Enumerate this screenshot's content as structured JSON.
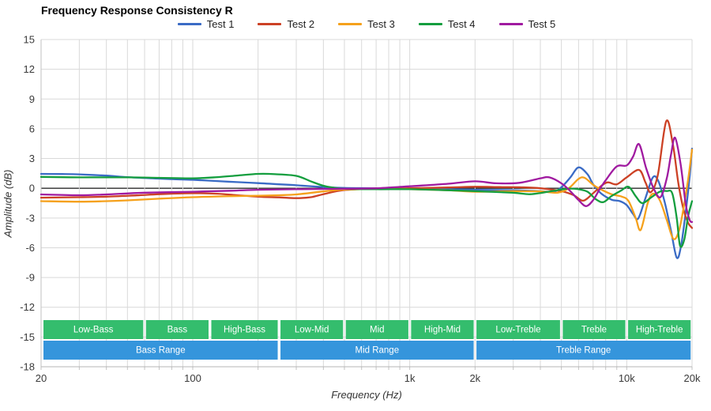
{
  "chart_data": {
    "type": "line",
    "title": "Frequency Response Consistency R",
    "xlabel": "Frequency (Hz)",
    "ylabel": "Amplitude (dB)",
    "x_scale": "log",
    "xlim": [
      20,
      20000
    ],
    "ylim": [
      -18,
      15
    ],
    "grid": true,
    "legend_position": "top",
    "y_ticks": [
      "15",
      "12",
      "9",
      "6",
      "3",
      "0",
      "-3",
      "-6",
      "-9",
      "-12",
      "-15",
      "-18"
    ],
    "y_tick_values": [
      15,
      12,
      9,
      6,
      3,
      0,
      -3,
      -6,
      -9,
      -12,
      -15,
      -18
    ],
    "x_ticks": [
      {
        "value": 20,
        "label": "20"
      },
      {
        "value": 100,
        "label": "100"
      },
      {
        "value": 1000,
        "label": "1k"
      },
      {
        "value": 2000,
        "label": "2k"
      },
      {
        "value": 10000,
        "label": "10k"
      },
      {
        "value": 20000,
        "label": "20k"
      }
    ],
    "x_gridlines": [
      20,
      30,
      40,
      50,
      60,
      70,
      80,
      90,
      100,
      200,
      300,
      400,
      500,
      600,
      700,
      800,
      900,
      1000,
      2000,
      3000,
      4000,
      5000,
      6000,
      7000,
      8000,
      9000,
      10000,
      20000
    ],
    "zero_line_color": "#2b2b2b",
    "grid_color": "#d9d9d9",
    "series": [
      {
        "name": "Test 1",
        "color": "#3a6bc5",
        "points": [
          [
            20,
            1.45
          ],
          [
            25,
            1.43
          ],
          [
            30,
            1.4
          ],
          [
            40,
            1.27
          ],
          [
            50,
            1.12
          ],
          [
            65,
            1.0
          ],
          [
            80,
            0.92
          ],
          [
            100,
            0.85
          ],
          [
            130,
            0.72
          ],
          [
            160,
            0.62
          ],
          [
            200,
            0.52
          ],
          [
            250,
            0.4
          ],
          [
            300,
            0.3
          ],
          [
            400,
            0.12
          ],
          [
            500,
            0.03
          ],
          [
            700,
            0
          ],
          [
            1000,
            -0.05
          ],
          [
            1500,
            -0.1
          ],
          [
            2000,
            -0.15
          ],
          [
            3000,
            -0.2
          ],
          [
            4000,
            -0.3
          ],
          [
            4600,
            -0.35
          ],
          [
            5000,
            0.1
          ],
          [
            5500,
            1.1
          ],
          [
            6000,
            2.1
          ],
          [
            6600,
            1.4
          ],
          [
            7000,
            0.4
          ],
          [
            7600,
            -0.5
          ],
          [
            8500,
            -1.15
          ],
          [
            9300,
            -1.3
          ],
          [
            10000,
            -1.7
          ],
          [
            10700,
            -2.6
          ],
          [
            11300,
            -3.05
          ],
          [
            12200,
            -1.0
          ],
          [
            13200,
            1.1
          ],
          [
            14000,
            0.7
          ],
          [
            15000,
            -1.5
          ],
          [
            16000,
            -4.3
          ],
          [
            17000,
            -7.0
          ],
          [
            17800,
            -5.8
          ],
          [
            18800,
            -2.0
          ],
          [
            19500,
            1.2
          ],
          [
            20000,
            4.0
          ]
        ]
      },
      {
        "name": "Test 2",
        "color": "#cc4125",
        "points": [
          [
            20,
            -0.95
          ],
          [
            30,
            -0.9
          ],
          [
            40,
            -0.85
          ],
          [
            55,
            -0.72
          ],
          [
            70,
            -0.6
          ],
          [
            100,
            -0.5
          ],
          [
            130,
            -0.55
          ],
          [
            160,
            -0.7
          ],
          [
            200,
            -0.85
          ],
          [
            250,
            -0.92
          ],
          [
            300,
            -1.0
          ],
          [
            350,
            -0.9
          ],
          [
            400,
            -0.6
          ],
          [
            500,
            -0.18
          ],
          [
            700,
            -0.05
          ],
          [
            1000,
            0
          ],
          [
            1500,
            0.08
          ],
          [
            2000,
            0.15
          ],
          [
            2600,
            0.12
          ],
          [
            3200,
            0.1
          ],
          [
            4000,
            0
          ],
          [
            5000,
            -0.3
          ],
          [
            5700,
            -0.7
          ],
          [
            6300,
            -1.25
          ],
          [
            7000,
            -0.5
          ],
          [
            7700,
            0.3
          ],
          [
            8200,
            0.6
          ],
          [
            9000,
            0.4
          ],
          [
            10000,
            1.1
          ],
          [
            11400,
            1.85
          ],
          [
            12200,
            0.6
          ],
          [
            12900,
            -0.4
          ],
          [
            13900,
            1.3
          ],
          [
            15200,
            6.75
          ],
          [
            16300,
            4.5
          ],
          [
            17300,
            0.5
          ],
          [
            18300,
            -2.2
          ],
          [
            19200,
            -3.5
          ],
          [
            20000,
            -4.0
          ]
        ]
      },
      {
        "name": "Test 3",
        "color": "#f5a11c",
        "points": [
          [
            20,
            -1.3
          ],
          [
            30,
            -1.36
          ],
          [
            40,
            -1.3
          ],
          [
            50,
            -1.22
          ],
          [
            70,
            -1.05
          ],
          [
            100,
            -0.9
          ],
          [
            150,
            -0.8
          ],
          [
            200,
            -0.75
          ],
          [
            250,
            -0.7
          ],
          [
            300,
            -0.62
          ],
          [
            400,
            -0.32
          ],
          [
            500,
            -0.12
          ],
          [
            700,
            -0.08
          ],
          [
            1000,
            -0.1
          ],
          [
            1500,
            -0.2
          ],
          [
            2000,
            -0.35
          ],
          [
            3000,
            -0.3
          ],
          [
            4000,
            -0.32
          ],
          [
            4800,
            -0.45
          ],
          [
            5400,
            0
          ],
          [
            6000,
            0.95
          ],
          [
            6400,
            1.05
          ],
          [
            7000,
            0.35
          ],
          [
            7500,
            -0.05
          ],
          [
            8500,
            -0.6
          ],
          [
            9500,
            -0.85
          ],
          [
            10200,
            -1.3
          ],
          [
            11000,
            -3.0
          ],
          [
            11600,
            -4.2
          ],
          [
            12500,
            -1.5
          ],
          [
            13200,
            -0.55
          ],
          [
            14200,
            -1.2
          ],
          [
            15300,
            -3.2
          ],
          [
            16400,
            -5.1
          ],
          [
            17400,
            -4.3
          ],
          [
            18400,
            -1.6
          ],
          [
            19300,
            1.3
          ],
          [
            20000,
            3.9
          ]
        ]
      },
      {
        "name": "Test 4",
        "color": "#149e3e",
        "points": [
          [
            20,
            1.15
          ],
          [
            30,
            1.1
          ],
          [
            50,
            1.1
          ],
          [
            70,
            1.05
          ],
          [
            100,
            1.0
          ],
          [
            130,
            1.12
          ],
          [
            160,
            1.28
          ],
          [
            200,
            1.45
          ],
          [
            240,
            1.42
          ],
          [
            300,
            1.25
          ],
          [
            350,
            0.7
          ],
          [
            400,
            0.25
          ],
          [
            450,
            0.05
          ],
          [
            500,
            -0.05
          ],
          [
            700,
            -0.1
          ],
          [
            1000,
            -0.1
          ],
          [
            1500,
            -0.2
          ],
          [
            2000,
            -0.3
          ],
          [
            3000,
            -0.45
          ],
          [
            3600,
            -0.6
          ],
          [
            4500,
            -0.3
          ],
          [
            5300,
            -0.05
          ],
          [
            6000,
            -0.1
          ],
          [
            6600,
            -0.35
          ],
          [
            7200,
            -1.1
          ],
          [
            7800,
            -1.4
          ],
          [
            8500,
            -0.8
          ],
          [
            9400,
            -0.25
          ],
          [
            10200,
            0.15
          ],
          [
            11000,
            -0.8
          ],
          [
            11800,
            -1.5
          ],
          [
            13000,
            -0.9
          ],
          [
            14200,
            -0.35
          ],
          [
            15300,
            -0.28
          ],
          [
            16200,
            -0.5
          ],
          [
            17000,
            -3.0
          ],
          [
            17600,
            -5.8
          ],
          [
            18400,
            -5.2
          ],
          [
            19200,
            -2.8
          ],
          [
            20000,
            -1.3
          ]
        ]
      },
      {
        "name": "Test 5",
        "color": "#a01aa0",
        "points": [
          [
            20,
            -0.62
          ],
          [
            30,
            -0.7
          ],
          [
            40,
            -0.62
          ],
          [
            60,
            -0.45
          ],
          [
            100,
            -0.35
          ],
          [
            150,
            -0.25
          ],
          [
            200,
            -0.15
          ],
          [
            300,
            -0.1
          ],
          [
            500,
            -0.05
          ],
          [
            700,
            0
          ],
          [
            1000,
            0.2
          ],
          [
            1500,
            0.45
          ],
          [
            2000,
            0.7
          ],
          [
            2500,
            0.5
          ],
          [
            3200,
            0.55
          ],
          [
            4000,
            1.0
          ],
          [
            4400,
            1.1
          ],
          [
            5000,
            0.5
          ],
          [
            5500,
            -0.3
          ],
          [
            6000,
            -1.2
          ],
          [
            6500,
            -1.8
          ],
          [
            7000,
            -1.2
          ],
          [
            7500,
            -0.1
          ],
          [
            8000,
            0.8
          ],
          [
            9000,
            2.2
          ],
          [
            10000,
            2.3
          ],
          [
            10700,
            3.2
          ],
          [
            11400,
            4.45
          ],
          [
            12300,
            2.0
          ],
          [
            13300,
            0
          ],
          [
            14300,
            -0.9
          ],
          [
            15300,
            1.0
          ],
          [
            16000,
            3.4
          ],
          [
            16700,
            5.1
          ],
          [
            17700,
            2.5
          ],
          [
            18700,
            -1.6
          ],
          [
            19500,
            -3.2
          ],
          [
            20000,
            -3.4
          ]
        ]
      }
    ]
  },
  "frequency_bands": {
    "sub_color": "#34bd6d",
    "main_color": "#3595dc",
    "label_color": "#ffffff",
    "sub": [
      {
        "label": "Low-Bass",
        "from": 20,
        "to": 60
      },
      {
        "label": "Bass",
        "from": 60,
        "to": 120
      },
      {
        "label": "High-Bass",
        "from": 120,
        "to": 250
      },
      {
        "label": "Low-Mid",
        "from": 250,
        "to": 500
      },
      {
        "label": "Mid",
        "from": 500,
        "to": 1000
      },
      {
        "label": "High-Mid",
        "from": 1000,
        "to": 2000
      },
      {
        "label": "Low-Treble",
        "from": 2000,
        "to": 5000
      },
      {
        "label": "Treble",
        "from": 5000,
        "to": 10000
      },
      {
        "label": "High-Treble",
        "from": 10000,
        "to": 20000
      }
    ],
    "main": [
      {
        "label": "Bass Range",
        "from": 20,
        "to": 250
      },
      {
        "label": "Mid Range",
        "from": 250,
        "to": 2000
      },
      {
        "label": "Treble Range",
        "from": 2000,
        "to": 20000
      }
    ]
  }
}
